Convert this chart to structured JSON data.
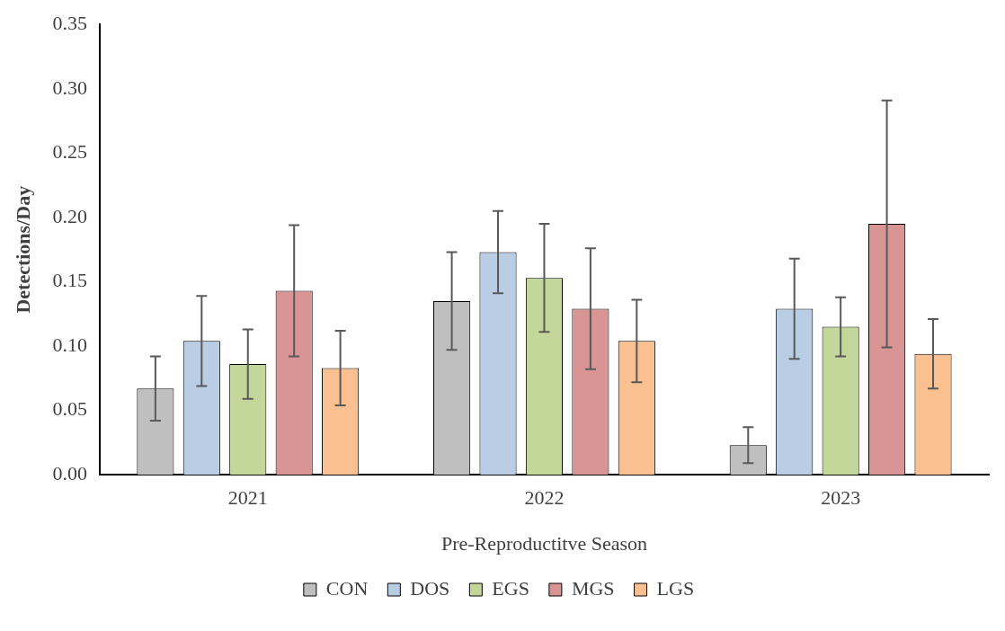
{
  "chart_data": {
    "type": "bar",
    "xlabel": "Pre-Reproductitve Season",
    "ylabel": "Detections/Day",
    "categories": [
      "2021",
      "2022",
      "2023"
    ],
    "series": [
      {
        "name": "CON",
        "color": "#bfbfbf",
        "values": [
          0.067,
          0.135,
          0.023
        ],
        "errors": [
          0.025,
          0.038,
          0.014
        ]
      },
      {
        "name": "DOS",
        "color": "#b9cde5",
        "values": [
          0.104,
          0.173,
          0.129
        ],
        "errors": [
          0.035,
          0.032,
          0.039
        ]
      },
      {
        "name": "EGS",
        "color": "#c4d79b",
        "values": [
          0.086,
          0.153,
          0.115
        ],
        "errors": [
          0.027,
          0.042,
          0.023
        ]
      },
      {
        "name": "MGS",
        "color": "#d99594",
        "values": [
          0.143,
          0.129,
          0.195
        ],
        "errors": [
          0.051,
          0.047,
          0.096
        ]
      },
      {
        "name": "LGS",
        "color": "#fac090",
        "values": [
          0.083,
          0.104,
          0.094
        ],
        "errors": [
          0.029,
          0.032,
          0.027
        ]
      }
    ],
    "ylim": [
      0,
      0.35
    ],
    "yticks": [
      {
        "value": 0,
        "label": "0.00"
      },
      {
        "value": 0.05,
        "label": "0.05"
      },
      {
        "value": 0.1,
        "label": "0.10"
      },
      {
        "value": 0.15,
        "label": "0.15"
      },
      {
        "value": 0.2,
        "label": "0.20"
      },
      {
        "value": 0.25,
        "label": "0.25"
      },
      {
        "value": 0.3,
        "label": "0.30"
      },
      {
        "value": 0.35,
        "label": "0.35"
      }
    ],
    "grid": false,
    "legend": "bottom"
  }
}
